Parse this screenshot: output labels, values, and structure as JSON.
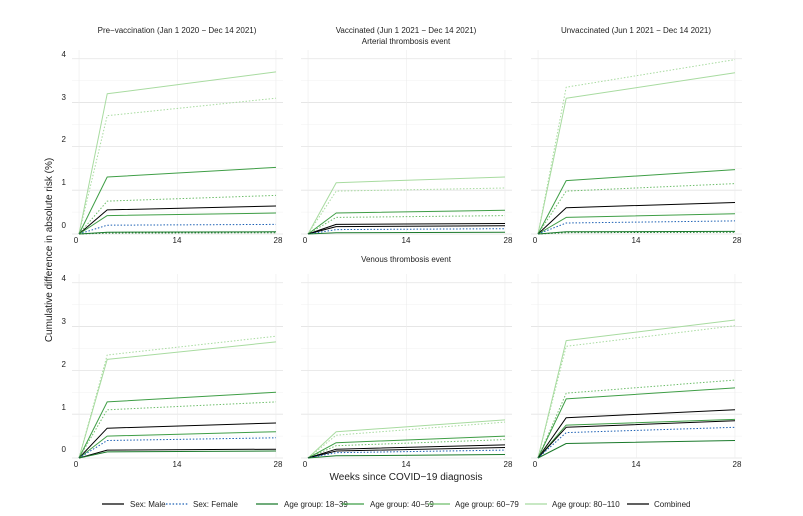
{
  "chart_data": {
    "type": "line",
    "ylabel": "Cumulative difference in absolute risk  (%)",
    "xlabel": "Weeks since COVID−19 diagnosis",
    "columns": [
      "Pre−vaccination (Jan 1 2020 − Dec 14 2021)",
      "Vaccinated (Jun 1 2021 − Dec 14 2021)",
      "Unvaccinated (Jun 1 2021 − Dec 14 2021)"
    ],
    "rows": [
      "Arterial thrombosis event",
      "Venous thrombosis event"
    ],
    "x": [
      0,
      4,
      28
    ],
    "xticks": [
      "0",
      "14",
      "28"
    ],
    "yticks": [
      "0",
      "1",
      "2",
      "3",
      "4"
    ],
    "ylim": [
      0,
      4.2
    ],
    "xlim": [
      -1,
      29
    ],
    "legend": [
      {
        "key": "male",
        "label": "Sex: Male",
        "color": "#000000",
        "dash": "solid"
      },
      {
        "key": "female",
        "label": "Sex: Female",
        "color": "#1a5fb4",
        "dash": "dotted"
      },
      {
        "key": "age1839",
        "label": "Age group: 18−39",
        "color": "#1b7a2c",
        "dash": "solid"
      },
      {
        "key": "age4059",
        "label": "Age group: 40−59",
        "color": "#3f9e46",
        "dash": "solid"
      },
      {
        "key": "age6079",
        "label": "Age group: 60−79",
        "color": "#6dbd6a",
        "dash": "solid"
      },
      {
        "key": "age80110",
        "label": "Age group: 80−110",
        "color": "#a8dba0",
        "dash": "solid"
      },
      {
        "key": "combined",
        "label": "Combined",
        "color": "#000000",
        "dash": "solid"
      }
    ],
    "panels": [
      {
        "row": 0,
        "col": 0,
        "series": [
          {
            "name": "Age group: 80−110",
            "color": "#a8dba0",
            "dash": "solid",
            "values": [
              0,
              3.2,
              3.7
            ]
          },
          {
            "name": "Age group: 80−110 (dotted)",
            "color": "#a8dba0",
            "dash": "dotted",
            "values": [
              0,
              2.7,
              3.1
            ]
          },
          {
            "name": "Age group: 60−79",
            "color": "#3f9e46",
            "dash": "solid",
            "values": [
              0,
              1.3,
              1.52
            ]
          },
          {
            "name": "Age group: 60−79 (dotted)",
            "color": "#6dbd6a",
            "dash": "dotted",
            "values": [
              0,
              0.75,
              0.88
            ]
          },
          {
            "name": "Combined",
            "color": "#000000",
            "dash": "solid",
            "values": [
              0,
              0.55,
              0.64
            ]
          },
          {
            "name": "Age group: 40−59",
            "color": "#3f9e46",
            "dash": "solid",
            "values": [
              0,
              0.42,
              0.48
            ]
          },
          {
            "name": "Sex: Female",
            "color": "#1a5fb4",
            "dash": "dotted",
            "values": [
              0,
              0.2,
              0.22
            ]
          },
          {
            "name": "Age group: 18−39",
            "color": "#1b7a2c",
            "dash": "solid",
            "values": [
              0,
              0.04,
              0.05
            ]
          },
          {
            "name": "Age group: 18−39 (dotted)",
            "color": "#1b7a2c",
            "dash": "dotted",
            "values": [
              0,
              0.02,
              0.03
            ]
          }
        ]
      },
      {
        "row": 0,
        "col": 1,
        "series": [
          {
            "name": "Age group: 80−110",
            "color": "#a8dba0",
            "dash": "solid",
            "values": [
              0,
              1.17,
              1.3
            ]
          },
          {
            "name": "Age group: 80−110 (dotted)",
            "color": "#a8dba0",
            "dash": "dotted",
            "values": [
              0,
              0.98,
              1.05
            ]
          },
          {
            "name": "Age group: 60−79",
            "color": "#3f9e46",
            "dash": "solid",
            "values": [
              0,
              0.48,
              0.54
            ]
          },
          {
            "name": "Age group: 60−79 (dotted)",
            "color": "#6dbd6a",
            "dash": "dotted",
            "values": [
              0,
              0.38,
              0.42
            ]
          },
          {
            "name": "Combined",
            "color": "#000000",
            "dash": "solid",
            "values": [
              0,
              0.22,
              0.24
            ]
          },
          {
            "name": "Sex: Male",
            "color": "#000000",
            "dash": "solid",
            "values": [
              0,
              0.17,
              0.19
            ]
          },
          {
            "name": "Sex: Female",
            "color": "#1a5fb4",
            "dash": "dotted",
            "values": [
              0,
              0.1,
              0.12
            ]
          },
          {
            "name": "Age group: 18−39",
            "color": "#1b7a2c",
            "dash": "solid",
            "values": [
              0,
              0.03,
              0.04
            ]
          }
        ]
      },
      {
        "row": 0,
        "col": 2,
        "series": [
          {
            "name": "Age group: 80−110 (dotted)",
            "color": "#a8dba0",
            "dash": "dotted",
            "values": [
              0,
              3.35,
              3.98
            ]
          },
          {
            "name": "Age group: 80−110",
            "color": "#a8dba0",
            "dash": "solid",
            "values": [
              0,
              3.1,
              3.68
            ]
          },
          {
            "name": "Age group: 60−79",
            "color": "#3f9e46",
            "dash": "solid",
            "values": [
              0,
              1.22,
              1.47
            ]
          },
          {
            "name": "Age group: 60−79 (dotted)",
            "color": "#6dbd6a",
            "dash": "dotted",
            "values": [
              0,
              0.98,
              1.15
            ]
          },
          {
            "name": "Combined",
            "color": "#000000",
            "dash": "solid",
            "values": [
              0,
              0.6,
              0.72
            ]
          },
          {
            "name": "Age group: 40−59",
            "color": "#3f9e46",
            "dash": "solid",
            "values": [
              0,
              0.38,
              0.46
            ]
          },
          {
            "name": "Sex: Female",
            "color": "#1a5fb4",
            "dash": "dotted",
            "values": [
              0,
              0.25,
              0.3
            ]
          },
          {
            "name": "Age group: 18−39",
            "color": "#1b7a2c",
            "dash": "solid",
            "values": [
              0,
              0.05,
              0.06
            ]
          },
          {
            "name": "Age group: 18−39 (dotted)",
            "color": "#1b7a2c",
            "dash": "dotted",
            "values": [
              0,
              0.03,
              0.04
            ]
          }
        ]
      },
      {
        "row": 1,
        "col": 0,
        "series": [
          {
            "name": "Age group: 80−110 (dotted)",
            "color": "#a8dba0",
            "dash": "dotted",
            "values": [
              0,
              2.35,
              2.78
            ]
          },
          {
            "name": "Age group: 80−110",
            "color": "#a8dba0",
            "dash": "solid",
            "values": [
              0,
              2.25,
              2.65
            ]
          },
          {
            "name": "Age group: 60−79",
            "color": "#3f9e46",
            "dash": "solid",
            "values": [
              0,
              1.28,
              1.5
            ]
          },
          {
            "name": "Age group: 60−79 (dotted)",
            "color": "#6dbd6a",
            "dash": "dotted",
            "values": [
              0,
              1.1,
              1.28
            ]
          },
          {
            "name": "Combined",
            "color": "#000000",
            "dash": "solid",
            "values": [
              0,
              0.68,
              0.8
            ]
          },
          {
            "name": "Age group: 40−59",
            "color": "#3f9e46",
            "dash": "solid",
            "values": [
              0,
              0.5,
              0.6
            ]
          },
          {
            "name": "Sex: Female",
            "color": "#1a5fb4",
            "dash": "dotted",
            "values": [
              0,
              0.4,
              0.46
            ]
          },
          {
            "name": "Sex: Male",
            "color": "#000000",
            "dash": "solid",
            "values": [
              0,
              0.18,
              0.2
            ]
          },
          {
            "name": "Age group: 18−39",
            "color": "#1b7a2c",
            "dash": "solid",
            "values": [
              0,
              0.14,
              0.16
            ]
          }
        ]
      },
      {
        "row": 1,
        "col": 1,
        "series": [
          {
            "name": "Age group: 80−110",
            "color": "#a8dba0",
            "dash": "solid",
            "values": [
              0,
              0.6,
              0.87
            ]
          },
          {
            "name": "Age group: 80−110 (dotted)",
            "color": "#a8dba0",
            "dash": "dotted",
            "values": [
              0,
              0.52,
              0.82
            ]
          },
          {
            "name": "Age group: 60−79",
            "color": "#3f9e46",
            "dash": "solid",
            "values": [
              0,
              0.35,
              0.5
            ]
          },
          {
            "name": "Age group: 60−79 (dotted)",
            "color": "#6dbd6a",
            "dash": "dotted",
            "values": [
              0,
              0.28,
              0.42
            ]
          },
          {
            "name": "Combined",
            "color": "#000000",
            "dash": "solid",
            "values": [
              0,
              0.2,
              0.3
            ]
          },
          {
            "name": "Sex: Male",
            "color": "#000000",
            "dash": "solid",
            "values": [
              0,
              0.16,
              0.24
            ]
          },
          {
            "name": "Sex: Female",
            "color": "#1a5fb4",
            "dash": "dotted",
            "values": [
              0,
              0.12,
              0.18
            ]
          },
          {
            "name": "Age group: 18−39",
            "color": "#1b7a2c",
            "dash": "solid",
            "values": [
              0,
              0.05,
              0.08
            ]
          }
        ]
      },
      {
        "row": 1,
        "col": 2,
        "series": [
          {
            "name": "Age group: 80−110",
            "color": "#a8dba0",
            "dash": "solid",
            "values": [
              0,
              2.68,
              3.15
            ]
          },
          {
            "name": "Age group: 80−110 (dotted)",
            "color": "#a8dba0",
            "dash": "dotted",
            "values": [
              0,
              2.55,
              3.02
            ]
          },
          {
            "name": "Age group: 60−79 (dotted)",
            "color": "#6dbd6a",
            "dash": "dotted",
            "values": [
              0,
              1.48,
              1.78
            ]
          },
          {
            "name": "Age group: 60−79",
            "color": "#3f9e46",
            "dash": "solid",
            "values": [
              0,
              1.35,
              1.6
            ]
          },
          {
            "name": "Combined",
            "color": "#000000",
            "dash": "solid",
            "values": [
              0,
              0.92,
              1.1
            ]
          },
          {
            "name": "Age group: 40−59",
            "color": "#3f9e46",
            "dash": "solid",
            "values": [
              0,
              0.75,
              0.88
            ]
          },
          {
            "name": "Sex: Male",
            "color": "#000000",
            "dash": "solid",
            "values": [
              0,
              0.7,
              0.85
            ]
          },
          {
            "name": "Sex: Female",
            "color": "#1a5fb4",
            "dash": "dotted",
            "values": [
              0,
              0.58,
              0.7
            ]
          },
          {
            "name": "Age group: 18−39",
            "color": "#1b7a2c",
            "dash": "solid",
            "values": [
              0,
              0.33,
              0.4
            ]
          }
        ]
      }
    ]
  }
}
